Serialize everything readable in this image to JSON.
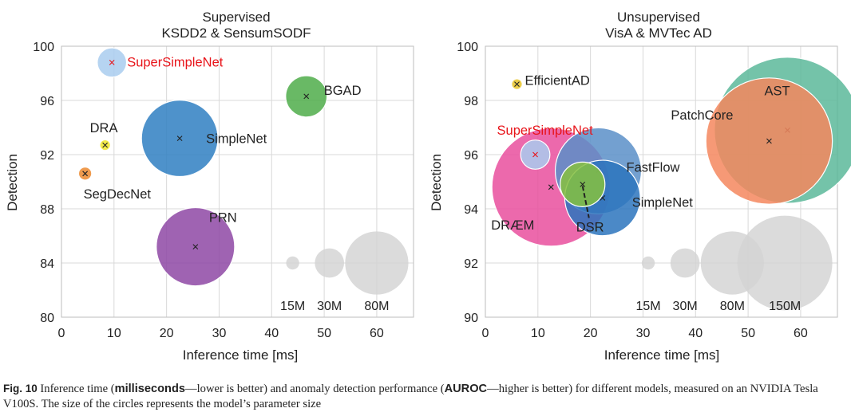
{
  "chart_data": [
    {
      "type": "scatter",
      "title_line1": "Supervised",
      "title_line2": "KSDD2 & SensumSODF",
      "xlabel": "Inference time [ms]",
      "ylabel": "Detection",
      "xlim": [
        0,
        67
      ],
      "ylim": [
        80,
        100
      ],
      "xticks": [
        0,
        10,
        20,
        30,
        40,
        50,
        60
      ],
      "yticks": [
        80,
        84,
        88,
        92,
        96,
        100
      ],
      "grid": true,
      "points": [
        {
          "name": "SuperSimpleNet",
          "x": 9.6,
          "y": 98.8,
          "size_m": 6,
          "color": "#a9cdee",
          "label_color": "#e8141a",
          "highlight": true
        },
        {
          "name": "BGAD",
          "x": 46.6,
          "y": 96.3,
          "size_m": 12,
          "color": "#4fad4a",
          "label_color": "#222222"
        },
        {
          "name": "DRA",
          "x": 8.3,
          "y": 92.7,
          "size_m": 0.8,
          "color": "#f0e62a",
          "label_color": "#222222"
        },
        {
          "name": "SimpleNet",
          "x": 22.5,
          "y": 93.2,
          "size_m": 41,
          "color": "#2f7fc2",
          "label_color": "#222222"
        },
        {
          "name": "SegDecNet",
          "x": 4.5,
          "y": 90.6,
          "size_m": 1.2,
          "color": "#ec8a2f",
          "label_color": "#222222"
        },
        {
          "name": "PRN",
          "x": 25.5,
          "y": 85.2,
          "size_m": 43,
          "color": "#8e48a5",
          "label_color": "#222222"
        }
      ],
      "size_legend": [
        {
          "label": "15M",
          "x": 44.0,
          "y": 84.0,
          "size_m": 1.2
        },
        {
          "label": "30M",
          "x": 51.0,
          "y": 84.0,
          "size_m": 6
        },
        {
          "label": "80M",
          "x": 60.0,
          "y": 84.0,
          "size_m": 28
        }
      ]
    },
    {
      "type": "scatter",
      "title_line1": "Unsupervised",
      "title_line2": "VisA & MVTec AD",
      "xlabel": "Inference time [ms]",
      "ylabel": "Detection",
      "xlim": [
        0,
        67
      ],
      "ylim": [
        90,
        100
      ],
      "xticks": [
        0,
        10,
        20,
        30,
        40,
        50,
        60
      ],
      "yticks": [
        90,
        92,
        94,
        96,
        98,
        100
      ],
      "grid": true,
      "points": [
        {
          "name": "AST",
          "x": 57.5,
          "y": 96.9,
          "size_m": 150,
          "color": "#5cb89a",
          "label_color": "#222222"
        },
        {
          "name": "PatchCore",
          "x": 54.0,
          "y": 96.5,
          "size_m": 112,
          "color": "#f5875e",
          "label_color": "#222222"
        },
        {
          "name": "FastFlow",
          "x": 21.5,
          "y": 95.4,
          "size_m": 52,
          "color": "#5a8fc8",
          "label_color": "#222222"
        },
        {
          "name": "SimpleNet",
          "x": 22.3,
          "y": 94.4,
          "size_m": 40,
          "color": "#2c74bd",
          "label_color": "#222222"
        },
        {
          "name": "DRÆM",
          "x": 12.5,
          "y": 94.8,
          "size_m": 98,
          "color": "#e94f9e",
          "label_color": "#222222"
        },
        {
          "name": "DSR",
          "x": 18.5,
          "y": 94.9,
          "size_m": 14,
          "color": "#86c13e",
          "label_color": "#222222"
        },
        {
          "name": "SuperSimpleNet",
          "x": 9.5,
          "y": 96.0,
          "size_m": 6,
          "color": "#a9cdee",
          "label_color": "#e8141a",
          "highlight": true
        },
        {
          "name": "EfficientAD",
          "x": 6.0,
          "y": 98.6,
          "size_m": 0.8,
          "color": "#e8c42a",
          "label_color": "#222222"
        }
      ],
      "size_legend": [
        {
          "label": "15M",
          "x": 31.0,
          "y": 92.0,
          "size_m": 1.2
        },
        {
          "label": "30M",
          "x": 38.0,
          "y": 92.0,
          "size_m": 6
        },
        {
          "label": "80M",
          "x": 47.0,
          "y": 92.0,
          "size_m": 28
        },
        {
          "label": "150M",
          "x": 57.0,
          "y": 92.0,
          "size_m": 63
        }
      ]
    }
  ],
  "caption": {
    "fig_label": "Fig. 10",
    "t1": " Inference time (",
    "b1": "milliseconds",
    "t2": "—lower is better) and anomaly detection performance (",
    "b2": "AUROC",
    "t3": "—higher is better) for different models, measured on an NVIDIA Tesla V100S. The size of the circles represents the model’s parameter size"
  }
}
